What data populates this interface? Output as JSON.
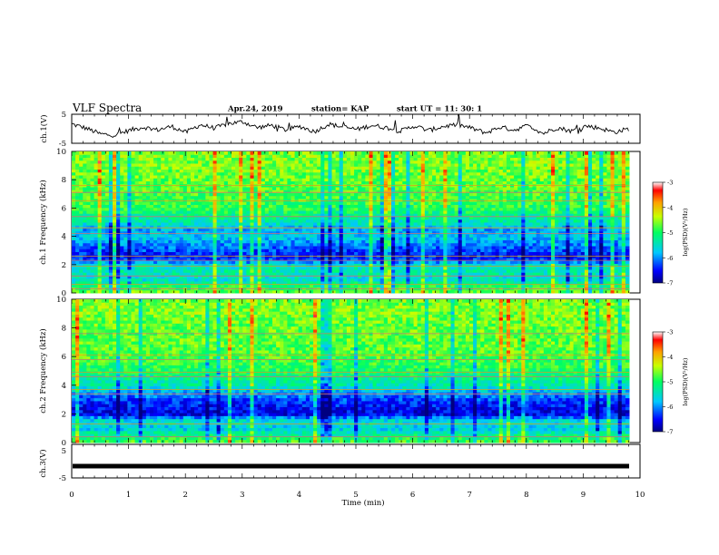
{
  "header": {
    "title": "VLF Spectra",
    "date": "Apr.24, 2019",
    "station": "station= KAP",
    "start": "start  UT =   11: 30: 1"
  },
  "chart_data": [
    {
      "type": "line",
      "ylabel": "ch.1(V)",
      "ylim": [
        -5,
        5
      ],
      "yticks": [
        "5",
        "-5"
      ],
      "x_range_min": [
        0,
        9.8
      ],
      "series": [
        {
          "name": "",
          "y_nodes": [
            1.6,
            0.2,
            -1.8,
            -2.2,
            -0.6,
            0.6,
            -0.4,
            0.8,
            -1.2,
            1.4,
            0.2,
            1.8,
            2.4,
            0.4,
            1.2,
            -0.4,
            0.8,
            -1.0,
            1.6,
            0.6,
            -0.2,
            1.2,
            0.4,
            -0.8,
            1.0,
            -0.6,
            0.8,
            1.4,
            0.2,
            -1.4,
            0.6,
            -0.4,
            1.2,
            -1.6,
            0.4,
            -0.8,
            1.0,
            0.2,
            -1.2,
            0.0
          ]
        }
      ]
    },
    {
      "type": "heatmap",
      "ylabel": "ch.1 Frequency (kHz)",
      "ylim": [
        0,
        10
      ],
      "yticks": [
        "0",
        "2",
        "4",
        "6",
        "8",
        "10"
      ],
      "color_scale": {
        "label": "log(PSD)(V²/Hz)",
        "range": [
          -7,
          -3
        ],
        "ticks": [
          "-3",
          "-4",
          "-5",
          "-6",
          "-7"
        ]
      },
      "level_profile": [
        {
          "f": 0,
          "level": -4.6
        },
        {
          "f": 0.5,
          "level": -5.0
        },
        {
          "f": 1.0,
          "level": -5.6
        },
        {
          "f": 1.5,
          "level": -5.3
        },
        {
          "f": 2.0,
          "level": -5.6
        },
        {
          "f": 2.5,
          "level": -6.5
        },
        {
          "f": 3.0,
          "level": -6.3
        },
        {
          "f": 3.5,
          "level": -6.0
        },
        {
          "f": 4.0,
          "level": -5.7
        },
        {
          "f": 4.5,
          "level": -5.9
        },
        {
          "f": 5.0,
          "level": -5.4
        },
        {
          "f": 5.5,
          "level": -5.2
        },
        {
          "f": 6.0,
          "level": -4.9
        },
        {
          "f": 7.0,
          "level": -4.8
        },
        {
          "f": 8.0,
          "level": -4.7
        },
        {
          "f": 9.0,
          "level": -4.6
        },
        {
          "f": 10.0,
          "level": -4.6
        }
      ],
      "lines_khz": [
        0.3,
        0.6,
        1.2,
        1.9,
        2.3,
        2.6,
        4.2,
        4.6,
        5.4,
        6.5,
        7.1,
        7.6
      ]
    },
    {
      "type": "heatmap",
      "ylabel": "ch.2 Frequency (kHz)",
      "ylim": [
        0,
        10
      ],
      "yticks": [
        "0",
        "2",
        "4",
        "6",
        "8",
        "10"
      ],
      "color_scale": {
        "label": "log(PSD)(V²/Hz)",
        "range": [
          -7,
          -3
        ],
        "ticks": [
          "-3",
          "-4",
          "-5",
          "-6",
          "-7"
        ]
      },
      "level_profile": [
        {
          "f": 0,
          "level": -4.7
        },
        {
          "f": 0.5,
          "level": -5.2
        },
        {
          "f": 1.0,
          "level": -5.7
        },
        {
          "f": 1.5,
          "level": -5.5
        },
        {
          "f": 2.0,
          "level": -6.6
        },
        {
          "f": 2.5,
          "level": -6.5
        },
        {
          "f": 3.0,
          "level": -6.3
        },
        {
          "f": 3.5,
          "level": -5.9
        },
        {
          "f": 4.0,
          "level": -5.4
        },
        {
          "f": 4.5,
          "level": -5.2
        },
        {
          "f": 5.0,
          "level": -5.0
        },
        {
          "f": 5.5,
          "level": -4.9
        },
        {
          "f": 6.0,
          "level": -4.8
        },
        {
          "f": 7.0,
          "level": -4.7
        },
        {
          "f": 8.0,
          "level": -4.7
        },
        {
          "f": 9.0,
          "level": -4.6
        },
        {
          "f": 10.0,
          "level": -4.6
        }
      ],
      "lines_khz": [
        0.4,
        1.3,
        3.4,
        3.7,
        4.6,
        4.9,
        5.8,
        6.1,
        7.6
      ]
    },
    {
      "type": "line",
      "ylabel": "ch.3(V)",
      "ylim": [
        -5,
        5
      ],
      "yticks": [
        "5",
        "-5"
      ],
      "series": [
        {
          "name": "",
          "y": -1.5
        }
      ]
    }
  ],
  "xaxis": {
    "label": "Time (min)",
    "range": [
      0,
      10
    ],
    "ticks": [
      "0",
      "1",
      "2",
      "3",
      "4",
      "5",
      "6",
      "7",
      "8",
      "9",
      "10"
    ]
  }
}
